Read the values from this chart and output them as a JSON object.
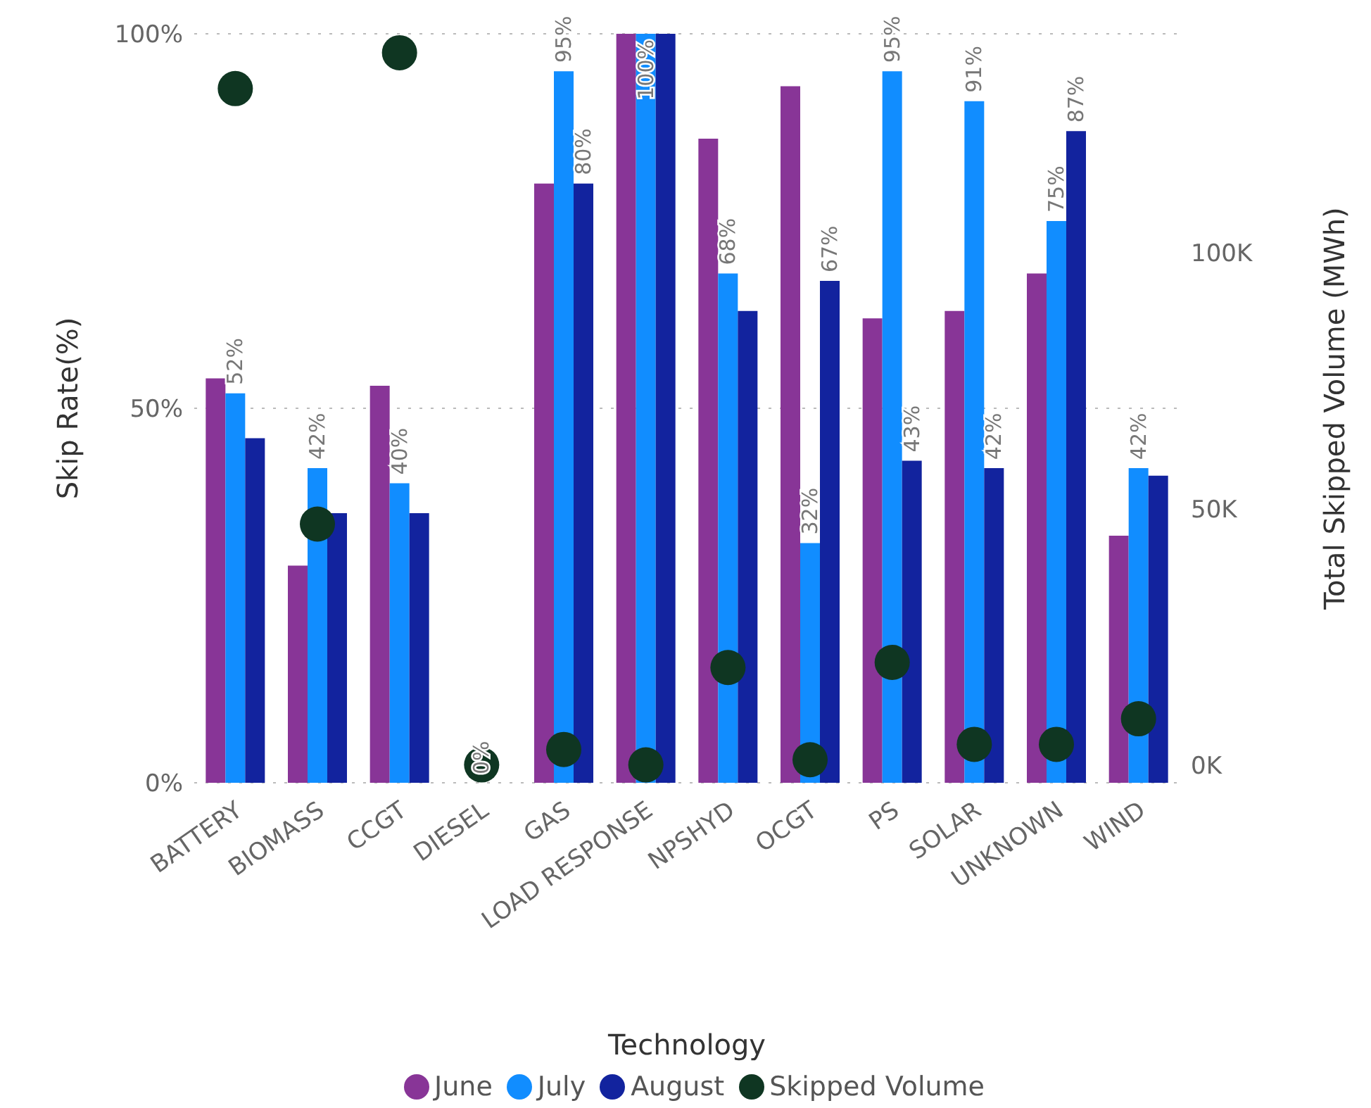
{
  "chart_data": {
    "type": "bar",
    "xlabel": "Technology",
    "ylabel": "Skip Rate(%)",
    "y2label": "Total Skipped Volume (MWh)",
    "categories": [
      "BATTERY",
      "BIOMASS",
      "CCGT",
      "DIESEL",
      "GAS",
      "LOAD RESPONSE",
      "NPSHYD",
      "OCGT",
      "PS",
      "SOLAR",
      "UNKNOWN",
      "WIND"
    ],
    "series": [
      {
        "name": "June",
        "color": "#883597",
        "values": [
          54,
          29,
          53,
          0,
          80,
          100,
          86,
          93,
          62,
          63,
          68,
          33
        ]
      },
      {
        "name": "July",
        "color": "#118dff",
        "values": [
          52,
          42,
          40,
          0,
          95,
          100,
          68,
          32,
          95,
          91,
          75,
          42
        ],
        "value_labels": [
          "52%",
          "42%",
          "40%",
          "0%",
          "95%",
          "100%",
          "68%",
          "32%",
          "95%",
          "91%",
          "75%",
          "42%"
        ]
      },
      {
        "name": "August",
        "color": "#12239e",
        "values": [
          46,
          36,
          36,
          0,
          80,
          100,
          63,
          67,
          43,
          42,
          87,
          41
        ],
        "value_labels": [
          null,
          null,
          null,
          null,
          "80%",
          null,
          null,
          "67%",
          "43%",
          "42%",
          "87%",
          null
        ]
      },
      {
        "name": "Skipped Volume",
        "type": "scatter",
        "axis": "y2",
        "color": "#0f3622",
        "values": [
          132000,
          47000,
          139000,
          0,
          3000,
          0,
          19000,
          1000,
          20000,
          4000,
          4000,
          9000
        ]
      }
    ],
    "ylim": [
      0,
      100
    ],
    "yticks": [
      {
        "value": 0,
        "label": "0%"
      },
      {
        "value": 50,
        "label": "50%"
      },
      {
        "value": 100,
        "label": "100%"
      }
    ],
    "y2lim": [
      -3500,
      142700
    ],
    "y2ticks": [
      {
        "value": 0,
        "label": "0K"
      },
      {
        "value": 50000,
        "label": "50K"
      },
      {
        "value": 100000,
        "label": "100K"
      }
    ],
    "grid": "y",
    "legend": "bottom",
    "marker": "circle"
  }
}
